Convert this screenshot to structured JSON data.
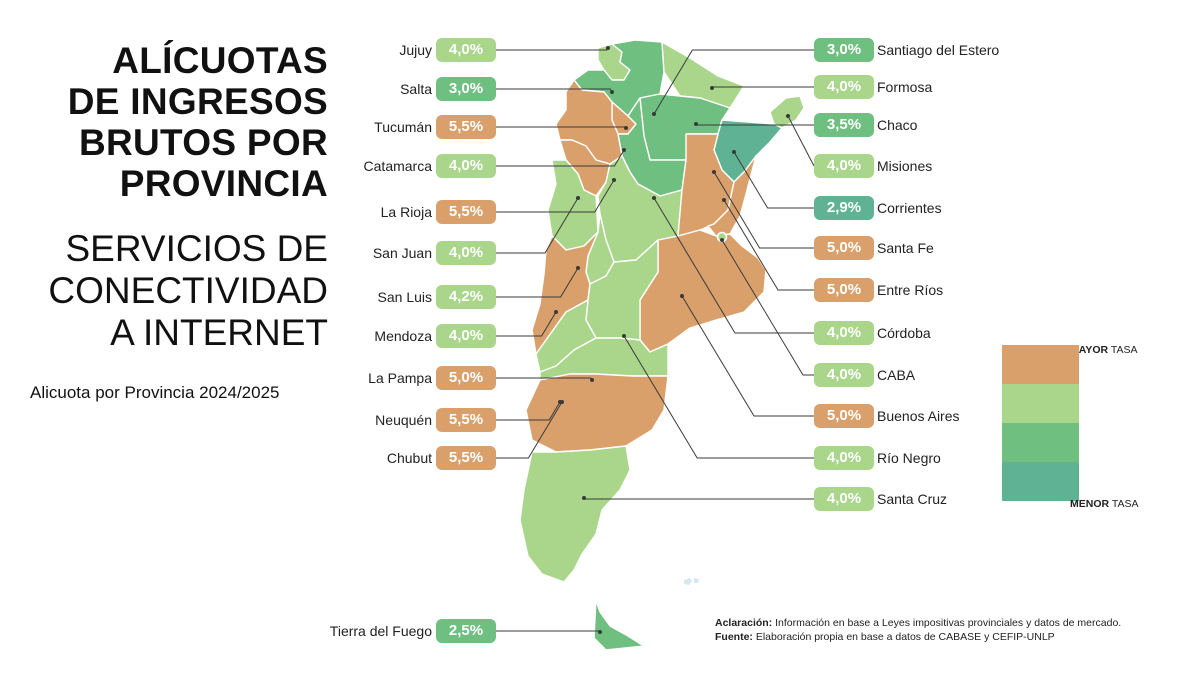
{
  "title": [
    "ALÍCUOTAS",
    "DE INGRESOS",
    "BRUTOS POR",
    "PROVINCIA"
  ],
  "subtitle": [
    "SERVICIOS DE",
    "CONECTIVIDAD",
    "A INTERNET"
  ],
  "period": "Alicuota por Provincia 2024/2025",
  "colors": {
    "orange": "#d9a06c",
    "light_green": "#a9d68a",
    "green": "#6fbf80",
    "teal": "#5fb394"
  },
  "provinces_left": [
    {
      "name": "Jujuy",
      "rate": "4,0%",
      "color": "light_green"
    },
    {
      "name": "Salta",
      "rate": "3,0%",
      "color": "green"
    },
    {
      "name": "Tucumán",
      "rate": "5,5%",
      "color": "orange"
    },
    {
      "name": "Catamarca",
      "rate": "4,0%",
      "color": "light_green"
    },
    {
      "name": "La Rioja",
      "rate": "5,5%",
      "color": "orange"
    },
    {
      "name": "San Juan",
      "rate": "4,0%",
      "color": "light_green"
    },
    {
      "name": "San Luis",
      "rate": "4,2%",
      "color": "light_green"
    },
    {
      "name": "Mendoza",
      "rate": "4,0%",
      "color": "light_green"
    },
    {
      "name": "La Pampa",
      "rate": "5,0%",
      "color": "orange"
    },
    {
      "name": "Neuquén",
      "rate": "5,5%",
      "color": "orange"
    },
    {
      "name": "Chubut",
      "rate": "5,5%",
      "color": "orange"
    },
    {
      "name": "Tierra del Fuego",
      "rate": "2,5%",
      "color": "green"
    }
  ],
  "provinces_right": [
    {
      "name": "Santiago del Estero",
      "rate": "3,0%",
      "color": "green"
    },
    {
      "name": "Formosa",
      "rate": "4,0%",
      "color": "light_green"
    },
    {
      "name": "Chaco",
      "rate": "3,5%",
      "color": "green"
    },
    {
      "name": "Misiones",
      "rate": "4,0%",
      "color": "light_green"
    },
    {
      "name": "Corrientes",
      "rate": "2,9%",
      "color": "teal"
    },
    {
      "name": "Santa Fe",
      "rate": "5,0%",
      "color": "orange"
    },
    {
      "name": "Entre Ríos",
      "rate": "5,0%",
      "color": "orange"
    },
    {
      "name": "Córdoba",
      "rate": "4,0%",
      "color": "light_green"
    },
    {
      "name": "CABA",
      "rate": "4,0%",
      "color": "light_green"
    },
    {
      "name": "Buenos Aires",
      "rate": "5,0%",
      "color": "orange"
    },
    {
      "name": "Río Negro",
      "rate": "4,0%",
      "color": "light_green"
    },
    {
      "name": "Santa Cruz",
      "rate": "4,0%",
      "color": "light_green"
    }
  ],
  "legend": {
    "top_bold": "MAYOR",
    "top_rest": " TASA",
    "bottom_bold": "MENOR",
    "bottom_rest": " TASA",
    "scale": [
      "orange",
      "light_green",
      "green",
      "teal"
    ]
  },
  "footnote": {
    "note_label": "Aclaración:",
    "note_text": " Información en base a Leyes impositivas provinciales y datos de mercado.",
    "source_label": "Fuente:",
    "source_text": " Elaboración propia en base a datos de CABASE y CEFIP-UNLP"
  }
}
